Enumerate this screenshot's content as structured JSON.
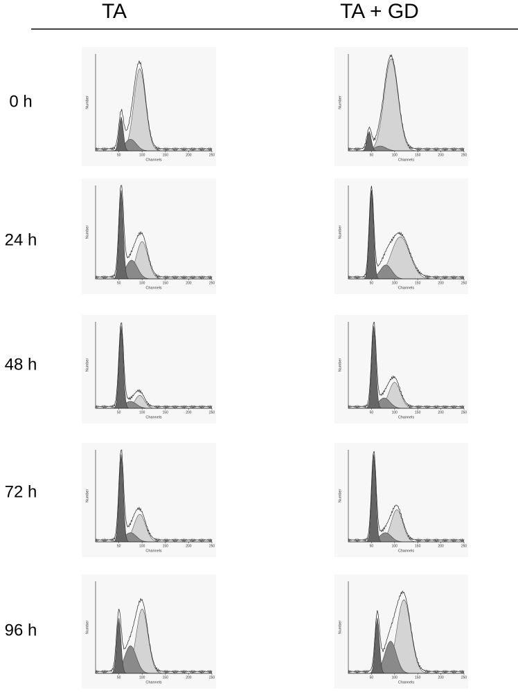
{
  "header": {
    "columns": [
      "TA",
      "TA + GD"
    ]
  },
  "rows": [
    "0 h",
    "24 h",
    "48 h",
    "72 h",
    "96 h"
  ],
  "panel_axes": {
    "y_label": "Number",
    "x_label": "Channels",
    "xticks": [
      50,
      100,
      150,
      200,
      250
    ]
  }
}
